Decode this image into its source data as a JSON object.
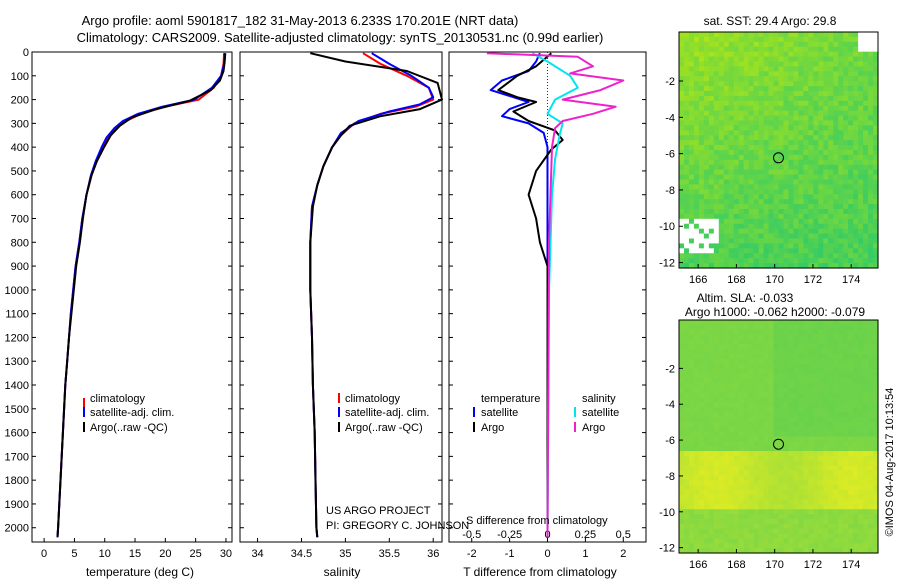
{
  "title": {
    "line1": "Argo profile: aoml 5901817_182 31-May-2013 6.233S 170.201E (NRT data)",
    "line2": "Climatology: CARS2009. Satellite-adjusted climatology: synTS_20130531.nc (0.99d earlier)"
  },
  "sst_title": "sat. SST: 29.4 Argo: 29.8",
  "sla_title1": "Altim. SLA: -0.033",
  "sla_title2": "Argo h1000: -0.062 h2000: -0.079",
  "credit": "©IMOS 04-Aug-2017 10:13:54",
  "project": {
    "line1": "US ARGO PROJECT",
    "line2": "PI: GREGORY C. JOHNSON"
  },
  "colors": {
    "climatology": "#ff0000",
    "satellite": "#0000ff",
    "argo": "#000000",
    "sal_satellite": "#00e5ee",
    "sal_argo": "#ee22cc"
  },
  "chart_data": [
    {
      "type": "line",
      "panel": "temperature",
      "xlabel": "temperature (deg C)",
      "xlim": [
        -2,
        31
      ],
      "xticks": [
        0,
        5,
        10,
        15,
        20,
        25,
        30
      ],
      "ylim": [
        2060,
        0
      ],
      "yticks": [
        0,
        100,
        200,
        300,
        400,
        500,
        600,
        700,
        800,
        900,
        1000,
        1100,
        1200,
        1300,
        1400,
        1500,
        1600,
        1700,
        1800,
        1900,
        2000
      ],
      "legend": [
        "climatology",
        "satellite-adj. clim.",
        "Argo(..raw -QC)"
      ],
      "series": [
        {
          "name": "climatology",
          "color": "#ff0000",
          "points": [
            [
              29.7,
              5
            ],
            [
              29.6,
              50
            ],
            [
              29.2,
              100
            ],
            [
              28.0,
              150
            ],
            [
              25.5,
              200
            ],
            [
              20,
              230
            ],
            [
              16,
              260
            ],
            [
              13.5,
              290
            ],
            [
              12,
              320
            ],
            [
              10.5,
              360
            ],
            [
              9.6,
              400
            ],
            [
              8.6,
              460
            ],
            [
              7.8,
              520
            ],
            [
              7,
              600
            ],
            [
              6.3,
              700
            ],
            [
              5.8,
              800
            ],
            [
              5.2,
              900
            ],
            [
              4.8,
              1000
            ],
            [
              4.4,
              1100
            ],
            [
              4.1,
              1200
            ],
            [
              3.8,
              1300
            ],
            [
              3.5,
              1400
            ],
            [
              3.3,
              1500
            ],
            [
              3.1,
              1600
            ],
            [
              2.9,
              1700
            ],
            [
              2.7,
              1800
            ],
            [
              2.5,
              1900
            ],
            [
              2.3,
              2000
            ],
            [
              2.2,
              2040
            ]
          ]
        },
        {
          "name": "satellite-adj. clim.",
          "color": "#0000ff",
          "points": [
            [
              29.8,
              5
            ],
            [
              29.7,
              50
            ],
            [
              29.2,
              100
            ],
            [
              27.7,
              150
            ],
            [
              24.8,
              200
            ],
            [
              19.5,
              230
            ],
            [
              15.5,
              260
            ],
            [
              13.0,
              290
            ],
            [
              11.6,
              320
            ],
            [
              10.3,
              360
            ],
            [
              9.5,
              400
            ],
            [
              8.5,
              460
            ],
            [
              7.7,
              520
            ],
            [
              7,
              600
            ],
            [
              6.3,
              700
            ],
            [
              5.8,
              800
            ],
            [
              5.2,
              900
            ],
            [
              4.8,
              1000
            ],
            [
              4.4,
              1100
            ],
            [
              4.1,
              1200
            ],
            [
              3.8,
              1300
            ],
            [
              3.5,
              1400
            ],
            [
              3.3,
              1500
            ],
            [
              3.1,
              1600
            ],
            [
              2.9,
              1700
            ],
            [
              2.7,
              1800
            ],
            [
              2.5,
              1900
            ],
            [
              2.3,
              2000
            ],
            [
              2.2,
              2040
            ]
          ]
        },
        {
          "name": "Argo(..raw -QC)",
          "color": "#000000",
          "points": [
            [
              29.9,
              5
            ],
            [
              29.8,
              40
            ],
            [
              29.6,
              80
            ],
            [
              29.0,
              120
            ],
            [
              27.5,
              160
            ],
            [
              24.0,
              205
            ],
            [
              18.5,
              240
            ],
            [
              14.5,
              275
            ],
            [
              12.5,
              310
            ],
            [
              11,
              350
            ],
            [
              9.9,
              400
            ],
            [
              8.7,
              460
            ],
            [
              7.8,
              520
            ],
            [
              7.0,
              600
            ],
            [
              6.4,
              700
            ],
            [
              5.9,
              800
            ],
            [
              5.3,
              900
            ],
            [
              4.9,
              1000
            ],
            [
              4.5,
              1100
            ],
            [
              4.1,
              1200
            ],
            [
              3.8,
              1300
            ],
            [
              3.5,
              1400
            ],
            [
              3.3,
              1500
            ],
            [
              3.1,
              1600
            ],
            [
              2.9,
              1700
            ],
            [
              2.7,
              1800
            ],
            [
              2.5,
              1900
            ],
            [
              2.3,
              2000
            ],
            [
              2.2,
              2040
            ]
          ]
        }
      ]
    },
    {
      "type": "line",
      "panel": "salinity",
      "xlabel": "salinity",
      "xlim": [
        33.8,
        36.1
      ],
      "xticks": [
        34,
        34.5,
        35,
        35.5,
        36
      ],
      "xticklabels": [
        "34",
        "34.5",
        "35",
        "35.5",
        "36"
      ],
      "ylim": [
        2060,
        0
      ],
      "legend": [
        "climatology",
        "satellite-adj. clim.",
        "Argo(..raw -QC)"
      ],
      "series": [
        {
          "name": "climatology",
          "color": "#ff0000",
          "points": [
            [
              35.2,
              5
            ],
            [
              35.4,
              50
            ],
            [
              35.7,
              100
            ],
            [
              35.95,
              150
            ],
            [
              36.0,
              200
            ],
            [
              35.8,
              230
            ],
            [
              35.4,
              260
            ],
            [
              35.1,
              300
            ],
            [
              34.95,
              350
            ],
            [
              34.85,
              400
            ],
            [
              34.75,
              480
            ],
            [
              34.68,
              560
            ],
            [
              34.62,
              650
            ],
            [
              34.6,
              800
            ],
            [
              34.6,
              1000
            ],
            [
              34.62,
              1200
            ],
            [
              34.63,
              1400
            ],
            [
              34.65,
              1600
            ],
            [
              34.66,
              1800
            ],
            [
              34.67,
              2000
            ],
            [
              34.68,
              2040
            ]
          ]
        },
        {
          "name": "satellite-adj. clim.",
          "color": "#0000ff",
          "points": [
            [
              35.3,
              5
            ],
            [
              35.5,
              50
            ],
            [
              35.75,
              100
            ],
            [
              35.95,
              150
            ],
            [
              36.0,
              190
            ],
            [
              35.85,
              220
            ],
            [
              35.5,
              250
            ],
            [
              35.15,
              290
            ],
            [
              34.95,
              340
            ],
            [
              34.85,
              400
            ],
            [
              34.75,
              480
            ],
            [
              34.68,
              560
            ],
            [
              34.62,
              650
            ],
            [
              34.6,
              800
            ],
            [
              34.6,
              1000
            ],
            [
              34.62,
              1200
            ],
            [
              34.63,
              1400
            ],
            [
              34.65,
              1600
            ],
            [
              34.66,
              1800
            ],
            [
              34.67,
              2000
            ],
            [
              34.68,
              2040
            ]
          ]
        },
        {
          "name": "Argo(..raw -QC)",
          "color": "#000000",
          "points": [
            [
              34.6,
              5
            ],
            [
              35.0,
              40
            ],
            [
              35.7,
              80
            ],
            [
              36.05,
              130
            ],
            [
              36.1,
              200
            ],
            [
              35.85,
              240
            ],
            [
              35.4,
              270
            ],
            [
              35.05,
              310
            ],
            [
              34.95,
              350
            ],
            [
              34.85,
              400
            ],
            [
              34.75,
              480
            ],
            [
              34.68,
              560
            ],
            [
              34.63,
              650
            ],
            [
              34.6,
              800
            ],
            [
              34.6,
              1000
            ],
            [
              34.62,
              1200
            ],
            [
              34.63,
              1400
            ],
            [
              34.65,
              1600
            ],
            [
              34.66,
              1800
            ],
            [
              34.67,
              2000
            ],
            [
              34.68,
              2040
            ]
          ]
        }
      ]
    },
    {
      "type": "line",
      "panel": "difference",
      "xlabel": "T difference from climatology",
      "xlabel_top": "S difference from climatology",
      "xlim": [
        -2.6,
        2.6
      ],
      "xticks": [
        -2,
        -1,
        0,
        1,
        2
      ],
      "xticks_top": [
        -0.5,
        -0.25,
        0,
        0.25,
        0.5
      ],
      "xticklabels_top": [
        "-0.5",
        "-0.25",
        "0",
        "0.25",
        "0.5"
      ],
      "ylim": [
        2060,
        0
      ],
      "legend_left": {
        "title": "temperature",
        "items": [
          "satellite",
          "Argo"
        ]
      },
      "legend_right": {
        "title": "salinity",
        "items": [
          "satellite",
          "Argo"
        ]
      },
      "series": [
        {
          "name": "temperature satellite",
          "color": "#0000ff",
          "points": [
            [
              -0.2,
              5
            ],
            [
              -0.3,
              40
            ],
            [
              -0.5,
              80
            ],
            [
              -1.2,
              120
            ],
            [
              -1.5,
              160
            ],
            [
              -0.9,
              190
            ],
            [
              -0.5,
              210
            ],
            [
              -1.0,
              240
            ],
            [
              -1.2,
              270
            ],
            [
              -0.5,
              300
            ],
            [
              -0.1,
              340
            ],
            [
              0,
              400
            ],
            [
              0,
              2040
            ]
          ]
        },
        {
          "name": "temperature Argo",
          "color": "#000000",
          "points": [
            [
              0.1,
              5
            ],
            [
              -0.3,
              60
            ],
            [
              -0.8,
              100
            ],
            [
              -1.3,
              160
            ],
            [
              -0.8,
              190
            ],
            [
              -0.3,
              210
            ],
            [
              -0.9,
              250
            ],
            [
              -0.5,
              290
            ],
            [
              0.2,
              330
            ],
            [
              0.4,
              370
            ],
            [
              0.1,
              410
            ],
            [
              -0.3,
              500
            ],
            [
              -0.5,
              600
            ],
            [
              -0.3,
              700
            ],
            [
              -0.2,
              800
            ],
            [
              0,
              900
            ],
            [
              0,
              2040
            ]
          ]
        },
        {
          "name": "salinity satellite",
          "color": "#00e5ee",
          "points": [
            [
              -0.1,
              5
            ],
            [
              0.0,
              40
            ],
            [
              0.15,
              100
            ],
            [
              0.2,
              150
            ],
            [
              0.05,
              200
            ],
            [
              0.0,
              260
            ],
            [
              0.1,
              300
            ],
            [
              0.08,
              350
            ],
            [
              0.05,
              450
            ],
            [
              0.03,
              600
            ],
            [
              0.02,
              800
            ],
            [
              0.01,
              1000
            ],
            [
              0,
              2040
            ]
          ]
        },
        {
          "name": "salinity Argo",
          "color": "#ee22cc",
          "points": [
            [
              -0.4,
              5
            ],
            [
              0.2,
              20
            ],
            [
              0.3,
              60
            ],
            [
              0.15,
              90
            ],
            [
              0.5,
              120
            ],
            [
              0.35,
              160
            ],
            [
              0.1,
              200
            ],
            [
              0.45,
              230
            ],
            [
              0.3,
              260
            ],
            [
              0.1,
              290
            ],
            [
              0.05,
              320
            ],
            [
              0.03,
              400
            ],
            [
              0.02,
              600
            ],
            [
              0.01,
              800
            ],
            [
              0,
              2040
            ]
          ]
        }
      ]
    },
    {
      "type": "heatmap",
      "panel": "sst_map",
      "title": "sat. SST: 29.4 Argo: 29.8",
      "xlim": [
        165,
        175.4
      ],
      "ylim": [
        -12.3,
        0.7
      ],
      "xticks": [
        166,
        168,
        170,
        172,
        174
      ],
      "yticks": [
        -2,
        -4,
        -6,
        -8,
        -10,
        -12
      ],
      "marker": {
        "lon": 170.2,
        "lat": -6.23
      }
    },
    {
      "type": "heatmap",
      "panel": "sla_map",
      "title": "Altim. SLA: -0.033",
      "xlim": [
        165,
        175.4
      ],
      "ylim": [
        -12.3,
        0.7
      ],
      "xticks": [
        166,
        168,
        170,
        172,
        174
      ],
      "yticks": [
        -2,
        -4,
        -6,
        -8,
        -10,
        -12
      ],
      "marker": {
        "lon": 170.2,
        "lat": -6.23
      }
    }
  ]
}
